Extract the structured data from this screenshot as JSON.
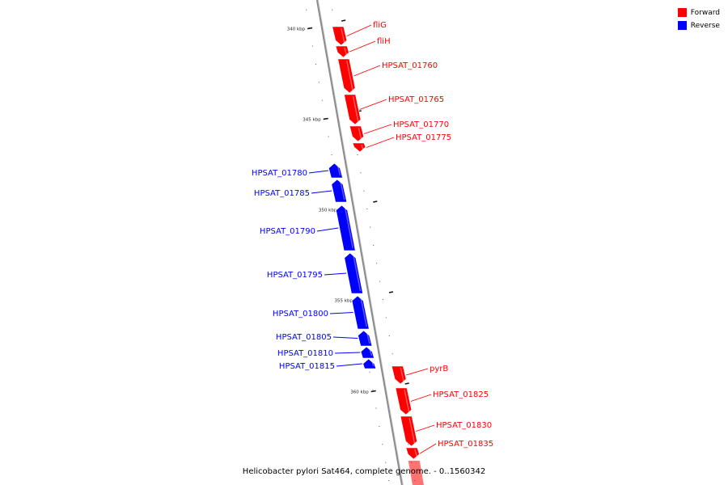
{
  "legend": {
    "items": [
      {
        "label": "Forward",
        "color": "#ff0000"
      },
      {
        "label": "Reverse",
        "color": "#0000ff"
      }
    ]
  },
  "caption": "Helicobacter pylori Sat464, complete genome. - 0..1560342",
  "colors": {
    "forward": "#ff0000",
    "reverse": "#0000ff",
    "backbone": "#8c8c8c"
  },
  "ticks": [
    {
      "label": "340 kbp"
    },
    {
      "label": "345 kbp"
    },
    {
      "label": "350 kbp"
    },
    {
      "label": "355 kbp"
    },
    {
      "label": "360 kbp"
    }
  ],
  "genes": [
    {
      "name": "fliG",
      "strand": "forward"
    },
    {
      "name": "fliH",
      "strand": "forward"
    },
    {
      "name": "HPSAT_01760",
      "strand": "forward"
    },
    {
      "name": "HPSAT_01765",
      "strand": "forward"
    },
    {
      "name": "HPSAT_01770",
      "strand": "forward"
    },
    {
      "name": "HPSAT_01775",
      "strand": "forward"
    },
    {
      "name": "HPSAT_01780",
      "strand": "reverse"
    },
    {
      "name": "HPSAT_01785",
      "strand": "reverse"
    },
    {
      "name": "HPSAT_01790",
      "strand": "reverse"
    },
    {
      "name": "HPSAT_01795",
      "strand": "reverse"
    },
    {
      "name": "HPSAT_01800",
      "strand": "reverse"
    },
    {
      "name": "HPSAT_01805",
      "strand": "reverse"
    },
    {
      "name": "HPSAT_01810",
      "strand": "reverse"
    },
    {
      "name": "HPSAT_01815",
      "strand": "reverse"
    },
    {
      "name": "pyrB",
      "strand": "forward"
    },
    {
      "name": "HPSAT_01825",
      "strand": "forward"
    },
    {
      "name": "HPSAT_01830",
      "strand": "forward"
    },
    {
      "name": "HPSAT_01835",
      "strand": "forward"
    }
  ]
}
